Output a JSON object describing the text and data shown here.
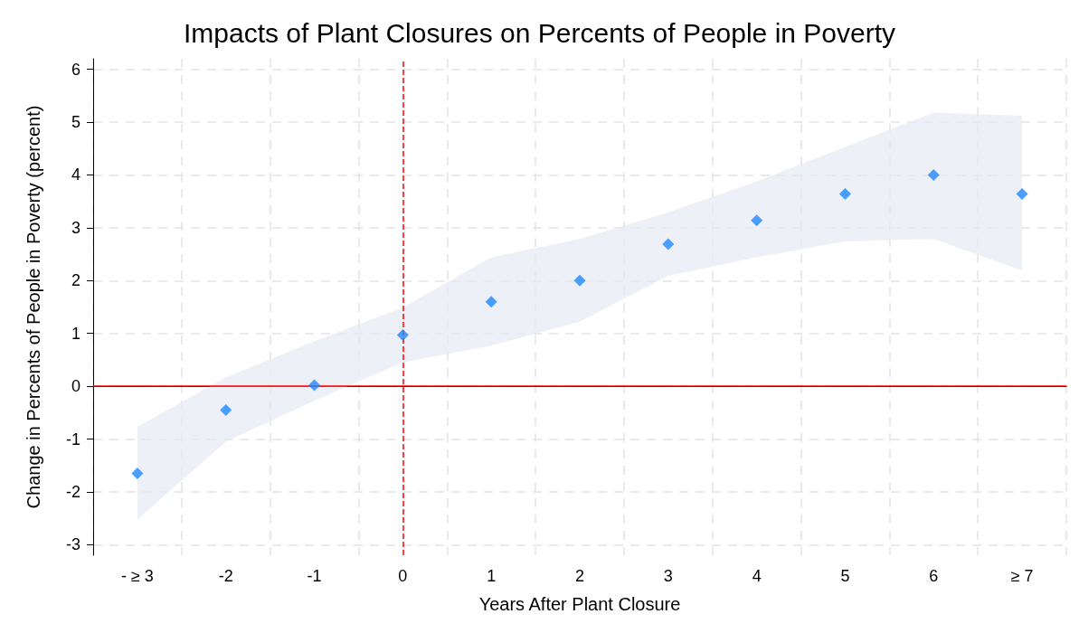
{
  "chart_data": {
    "type": "scatter",
    "title": "Impacts of Plant Closures on Percents of People in Poverty",
    "xlabel": "Years After Plant Closure",
    "ylabel": "Change in Percents of People in Poverty (percent)",
    "categories": [
      "- ≥ 3",
      "-2",
      "-1",
      "0",
      "1",
      "2",
      "3",
      "4",
      "5",
      "6",
      "≥ 7"
    ],
    "series": [
      {
        "color": "#1e88ff",
        "values": [
          -1.65,
          -0.45,
          0.02,
          0.97,
          1.6,
          2.0,
          2.69,
          3.14,
          3.64,
          4.0,
          3.64
        ],
        "lower": [
          -2.52,
          -1.05,
          -0.27,
          0.45,
          0.77,
          1.22,
          2.09,
          2.44,
          2.74,
          2.79,
          2.19
        ],
        "upper": [
          -0.77,
          0.17,
          0.85,
          1.49,
          2.44,
          2.79,
          3.29,
          3.88,
          4.53,
          5.18,
          5.12
        ]
      }
    ],
    "ylim": [
      -3.2,
      6.2
    ],
    "yticks": [
      -3,
      -2,
      -1,
      0,
      1,
      2,
      3,
      4,
      5,
      6
    ],
    "ref_lines": [
      {
        "axis": "y",
        "value": 0,
        "color": "#ff0000",
        "line_style": "solid"
      },
      {
        "axis": "x",
        "value": "0",
        "color": "#ff0000",
        "line_style": "dashed"
      }
    ],
    "grid": true,
    "marker": "diamond"
  }
}
